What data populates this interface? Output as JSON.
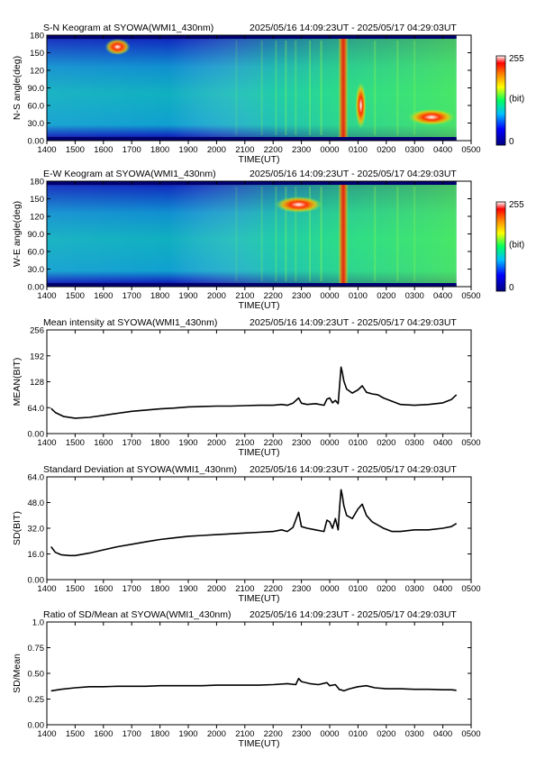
{
  "x_axis": {
    "label": "TIME(UT)",
    "ticks": [
      "1400",
      "1500",
      "1600",
      "1700",
      "1800",
      "1900",
      "2000",
      "2100",
      "2200",
      "2300",
      "0000",
      "0100",
      "0200",
      "0300",
      "0400",
      "0500"
    ],
    "range_hours": [
      14.0,
      29.0
    ],
    "data_end_hours": 28.48
  },
  "panels": {
    "sn": {
      "title": "S-N Keogram at SYOWA(WMI1_430nm)",
      "time_range": "2025/05/16 14:09:23UT - 2025/05/17 04:29:03UT",
      "ylabel": "N-S angle(deg)",
      "yticks": [
        "0.00",
        "30.0",
        "60.0",
        "90.0",
        "120",
        "150",
        "180"
      ]
    },
    "ew": {
      "title": "E-W Keogram at SYOWA(WMI1_430nm)",
      "time_range": "2025/05/16 14:09:23UT - 2025/05/17 04:29:03UT",
      "ylabel": "W-E angle(deg)",
      "yticks": [
        "0.00",
        "30.0",
        "60.0",
        "90.0",
        "120",
        "150",
        "180"
      ]
    },
    "mean": {
      "title": "Mean intensity at SYOWA(WMI1_430nm)",
      "time_range": "2025/05/16 14:09:23UT - 2025/05/17 04:29:03UT",
      "ylabel": "MEAN(BIT)",
      "yticks": [
        "0.00",
        "64.0",
        "128",
        "192",
        "256"
      ]
    },
    "sd": {
      "title": "Standard Deviation at SYOWA(WMI1_430nm)",
      "time_range": "2025/05/16 14:09:23UT - 2025/05/17 04:29:03UT",
      "ylabel": "SD(BIT)",
      "yticks": [
        "0.00",
        "16.0",
        "32.0",
        "48.0",
        "64.0"
      ]
    },
    "ratio": {
      "title": "Ratio of SD/Mean at SYOWA(WMI1_430nm)",
      "time_range": "2025/05/16 14:09:23UT - 2025/05/17 04:29:03UT",
      "ylabel": "SD/Mean",
      "yticks": [
        "0.00",
        "0.25",
        "0.50",
        "0.75",
        "1.0"
      ]
    }
  },
  "colorbar": {
    "max": "255",
    "unit": "(bit)",
    "min": "0"
  },
  "chart_data": [
    {
      "type": "heatmap",
      "title": "S-N Keogram at SYOWA(WMI1_430nm)",
      "xlabel": "TIME(UT)",
      "ylabel": "N-S angle(deg)",
      "xlim": [
        14.0,
        29.0
      ],
      "ylim": [
        0,
        180
      ],
      "value_range": [
        0,
        255
      ],
      "bright_features": [
        {
          "time_hours": 16.5,
          "angle_deg": 160,
          "intensity": 255
        },
        {
          "time_hours": 24.5,
          "angle_deg": 90,
          "intensity": 220
        },
        {
          "time_hours": 25.1,
          "angle_deg": 60,
          "intensity": 230
        },
        {
          "time_hours": 27.6,
          "angle_deg": 40,
          "intensity": 255
        }
      ]
    },
    {
      "type": "heatmap",
      "title": "E-W Keogram at SYOWA(WMI1_430nm)",
      "xlabel": "TIME(UT)",
      "ylabel": "W-E angle(deg)",
      "xlim": [
        14.0,
        29.0
      ],
      "ylim": [
        0,
        180
      ],
      "value_range": [
        0,
        255
      ],
      "bright_features": [
        {
          "time_hours": 22.9,
          "angle_deg": 140,
          "intensity": 255
        },
        {
          "time_hours": 24.5,
          "angle_deg": 90,
          "intensity": 220
        }
      ]
    },
    {
      "type": "line",
      "title": "Mean intensity at SYOWA(WMI1_430nm)",
      "xlabel": "TIME(UT)",
      "ylabel": "MEAN(BIT)",
      "xlim": [
        14.0,
        29.0
      ],
      "ylim": [
        0,
        256
      ],
      "x": [
        14.15,
        14.3,
        14.6,
        15.0,
        15.5,
        16.0,
        16.5,
        17.0,
        17.5,
        18.0,
        18.5,
        19.0,
        19.5,
        20.0,
        20.5,
        21.0,
        21.5,
        22.0,
        22.3,
        22.5,
        22.7,
        22.9,
        23.0,
        23.2,
        23.5,
        23.8,
        23.9,
        24.0,
        24.1,
        24.2,
        24.3,
        24.35,
        24.4,
        24.45,
        24.5,
        24.6,
        24.8,
        25.0,
        25.15,
        25.3,
        25.5,
        25.7,
        25.9,
        26.2,
        26.5,
        27.0,
        27.5,
        28.0,
        28.3,
        28.48
      ],
      "y": [
        62,
        52,
        42,
        38,
        40,
        45,
        50,
        55,
        58,
        61,
        63,
        66,
        67,
        68,
        68,
        69,
        70,
        70,
        72,
        70,
        75,
        88,
        75,
        72,
        74,
        70,
        85,
        88,
        76,
        82,
        74,
        120,
        164,
        150,
        130,
        110,
        100,
        108,
        118,
        102,
        98,
        96,
        88,
        80,
        72,
        70,
        72,
        76,
        84,
        96
      ]
    },
    {
      "type": "line",
      "title": "Standard Deviation at SYOWA(WMI1_430nm)",
      "xlabel": "TIME(UT)",
      "ylabel": "SD(BIT)",
      "xlim": [
        14.0,
        29.0
      ],
      "ylim": [
        0,
        64
      ],
      "x": [
        14.15,
        14.3,
        14.5,
        14.8,
        15.0,
        15.5,
        16.0,
        16.5,
        17.0,
        17.5,
        18.0,
        18.5,
        19.0,
        19.5,
        20.0,
        20.5,
        21.0,
        21.5,
        22.0,
        22.3,
        22.5,
        22.7,
        22.9,
        23.0,
        23.2,
        23.5,
        23.8,
        23.9,
        24.0,
        24.1,
        24.2,
        24.3,
        24.35,
        24.4,
        24.45,
        24.5,
        24.6,
        24.8,
        25.0,
        25.15,
        25.3,
        25.5,
        25.7,
        25.9,
        26.2,
        26.5,
        27.0,
        27.5,
        28.0,
        28.3,
        28.48
      ],
      "y": [
        20.5,
        17,
        15.5,
        15,
        15,
        16.5,
        18.5,
        20.5,
        22,
        23.5,
        25,
        26,
        27,
        27.5,
        28,
        28.5,
        29,
        29.5,
        30,
        31,
        30,
        32.5,
        42,
        33,
        32,
        31,
        30,
        37,
        36,
        32,
        38,
        31,
        45,
        56,
        52,
        46,
        40,
        38,
        44,
        47,
        40,
        36,
        34,
        32,
        30,
        30,
        31,
        31,
        32,
        33,
        35
      ]
    },
    {
      "type": "line",
      "title": "Ratio of SD/Mean at SYOWA(WMI1_430nm)",
      "xlabel": "TIME(UT)",
      "ylabel": "SD/Mean",
      "xlim": [
        14.0,
        29.0
      ],
      "ylim": [
        0,
        1.0
      ],
      "x": [
        14.15,
        14.5,
        15.0,
        15.5,
        16.0,
        16.5,
        17.0,
        17.5,
        18.0,
        18.5,
        19.0,
        19.5,
        20.0,
        20.5,
        21.0,
        21.5,
        22.0,
        22.5,
        22.8,
        22.9,
        23.0,
        23.3,
        23.6,
        23.9,
        24.0,
        24.2,
        24.35,
        24.4,
        24.5,
        24.7,
        25.0,
        25.3,
        25.6,
        26.0,
        26.5,
        27.0,
        27.5,
        28.0,
        28.3,
        28.48
      ],
      "y": [
        0.33,
        0.345,
        0.36,
        0.37,
        0.37,
        0.375,
        0.375,
        0.375,
        0.38,
        0.38,
        0.38,
        0.38,
        0.385,
        0.385,
        0.385,
        0.385,
        0.39,
        0.4,
        0.39,
        0.45,
        0.42,
        0.4,
        0.39,
        0.41,
        0.38,
        0.39,
        0.34,
        0.34,
        0.33,
        0.35,
        0.37,
        0.38,
        0.36,
        0.35,
        0.35,
        0.345,
        0.345,
        0.34,
        0.34,
        0.335
      ]
    }
  ]
}
